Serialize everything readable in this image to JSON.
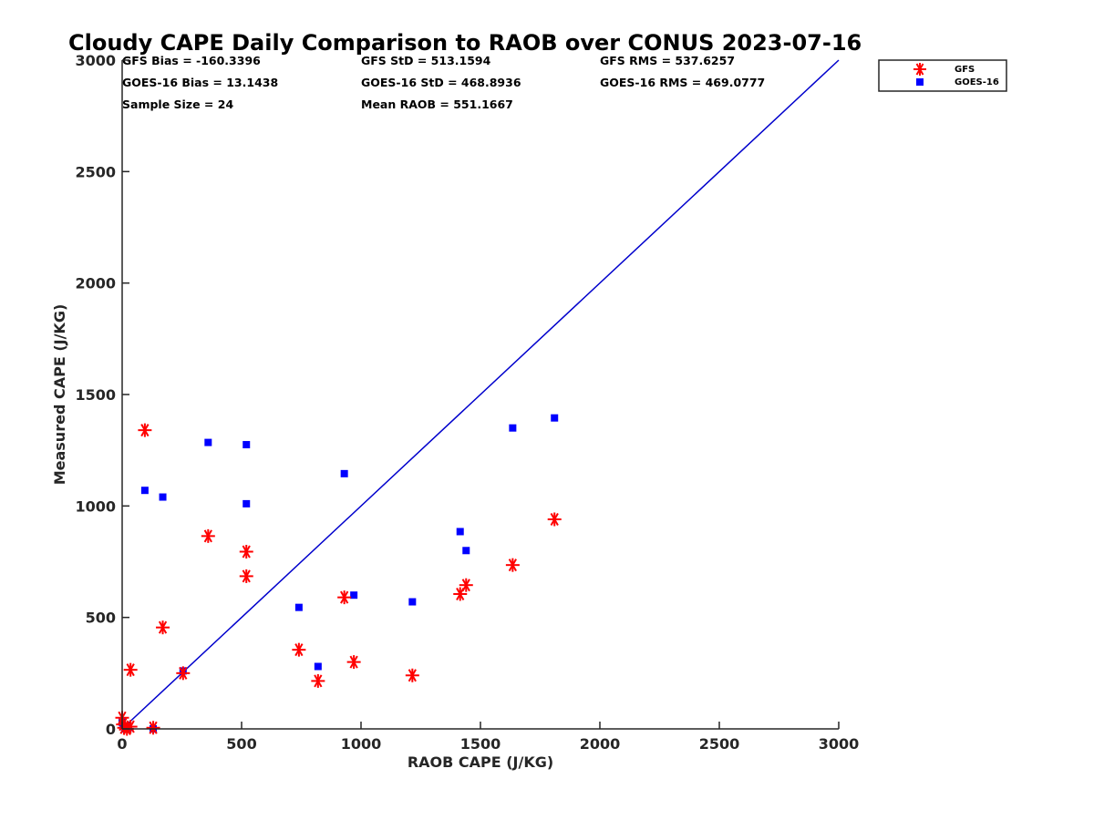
{
  "chart_data": {
    "type": "scatter",
    "title": "Cloudy CAPE Daily Comparison to RAOB over CONUS 2023-07-16",
    "xlabel": "RAOB CAPE (J/KG)",
    "ylabel": "Measured CAPE (J/KG)",
    "xlim": [
      0,
      3000
    ],
    "ylim": [
      0,
      3000
    ],
    "xticks": [
      "0",
      "500",
      "1000",
      "1500",
      "2000",
      "2500",
      "3000"
    ],
    "yticks": [
      "0",
      "500",
      "1000",
      "1500",
      "2000",
      "2500",
      "3000"
    ],
    "grid": false,
    "legend_position": "outside top-right",
    "stats": [
      [
        "GFS Bias = -160.3396",
        "GFS StD = 513.1594",
        "GFS RMS = 537.6257"
      ],
      [
        "GOES-16 Bias = 13.1438",
        "GOES-16 StD = 468.8936",
        "GOES-16 RMS = 469.0777"
      ],
      [
        "Sample Size = 24",
        "Mean RAOB = 551.1667",
        ""
      ]
    ],
    "reference_line": {
      "x": [
        0,
        3000
      ],
      "y": [
        0,
        3000
      ],
      "color": "#0000cc"
    },
    "series": [
      {
        "name": "GFS",
        "marker": "asterisk",
        "color": "#ff0000",
        "points": [
          [
            0,
            50
          ],
          [
            3,
            20
          ],
          [
            8,
            5
          ],
          [
            20,
            0
          ],
          [
            35,
            265
          ],
          [
            35,
            10
          ],
          [
            130,
            5
          ],
          [
            95,
            1340
          ],
          [
            170,
            455
          ],
          [
            255,
            250
          ],
          [
            360,
            865
          ],
          [
            520,
            795
          ],
          [
            520,
            685
          ],
          [
            740,
            355
          ],
          [
            820,
            215
          ],
          [
            930,
            590
          ],
          [
            970,
            300
          ],
          [
            1215,
            240
          ],
          [
            1415,
            605
          ],
          [
            1440,
            645
          ],
          [
            1635,
            735
          ],
          [
            1810,
            940
          ]
        ]
      },
      {
        "name": "GOES-16",
        "marker": "square",
        "color": "#0000ff",
        "points": [
          [
            0,
            30
          ],
          [
            5,
            10
          ],
          [
            15,
            0
          ],
          [
            25,
            5
          ],
          [
            130,
            0
          ],
          [
            95,
            1070
          ],
          [
            170,
            1040
          ],
          [
            255,
            260
          ],
          [
            360,
            1285
          ],
          [
            520,
            1275
          ],
          [
            520,
            1010
          ],
          [
            740,
            545
          ],
          [
            820,
            280
          ],
          [
            930,
            1145
          ],
          [
            970,
            600
          ],
          [
            1215,
            570
          ],
          [
            1415,
            885
          ],
          [
            1440,
            800
          ],
          [
            1635,
            1350
          ],
          [
            1810,
            1395
          ]
        ]
      }
    ]
  }
}
